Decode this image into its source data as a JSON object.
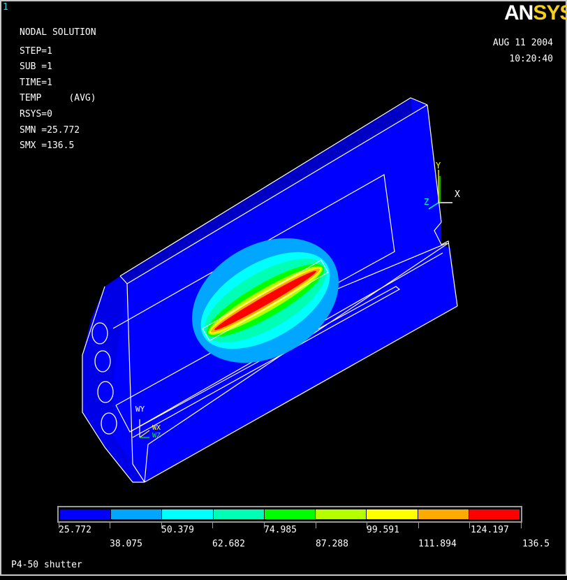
{
  "window_number": "1",
  "brand": {
    "an": "AN",
    "sys": "SYS"
  },
  "info": {
    "title": "NODAL SOLUTION",
    "step": "STEP=1",
    "sub": "SUB =1",
    "time": "TIME=1",
    "temp": "TEMP     (AVG)",
    "rsys": "RSYS=0",
    "smn": "SMN =25.772",
    "smx": "SMX =136.5"
  },
  "date": "AUG 11 2004",
  "clock": "10:20:40",
  "axes": {
    "x": "X",
    "y": "Y",
    "z": "Z",
    "wy": "WY",
    "wz": "WZ",
    "wx": "WX"
  },
  "legend": {
    "colors": [
      "#0000ff",
      "#00a6ff",
      "#00ffff",
      "#00ffb4",
      "#00ff00",
      "#b4ff00",
      "#ffff00",
      "#ffaa00",
      "#ff0000"
    ],
    "top_labels": [
      "25.772",
      "50.379",
      "74.985",
      "99.591",
      "124.197"
    ],
    "bottom_labels": [
      "38.075",
      "62.682",
      "87.288",
      "111.894",
      "136.5"
    ]
  },
  "footer": "P4-50 shutter"
}
